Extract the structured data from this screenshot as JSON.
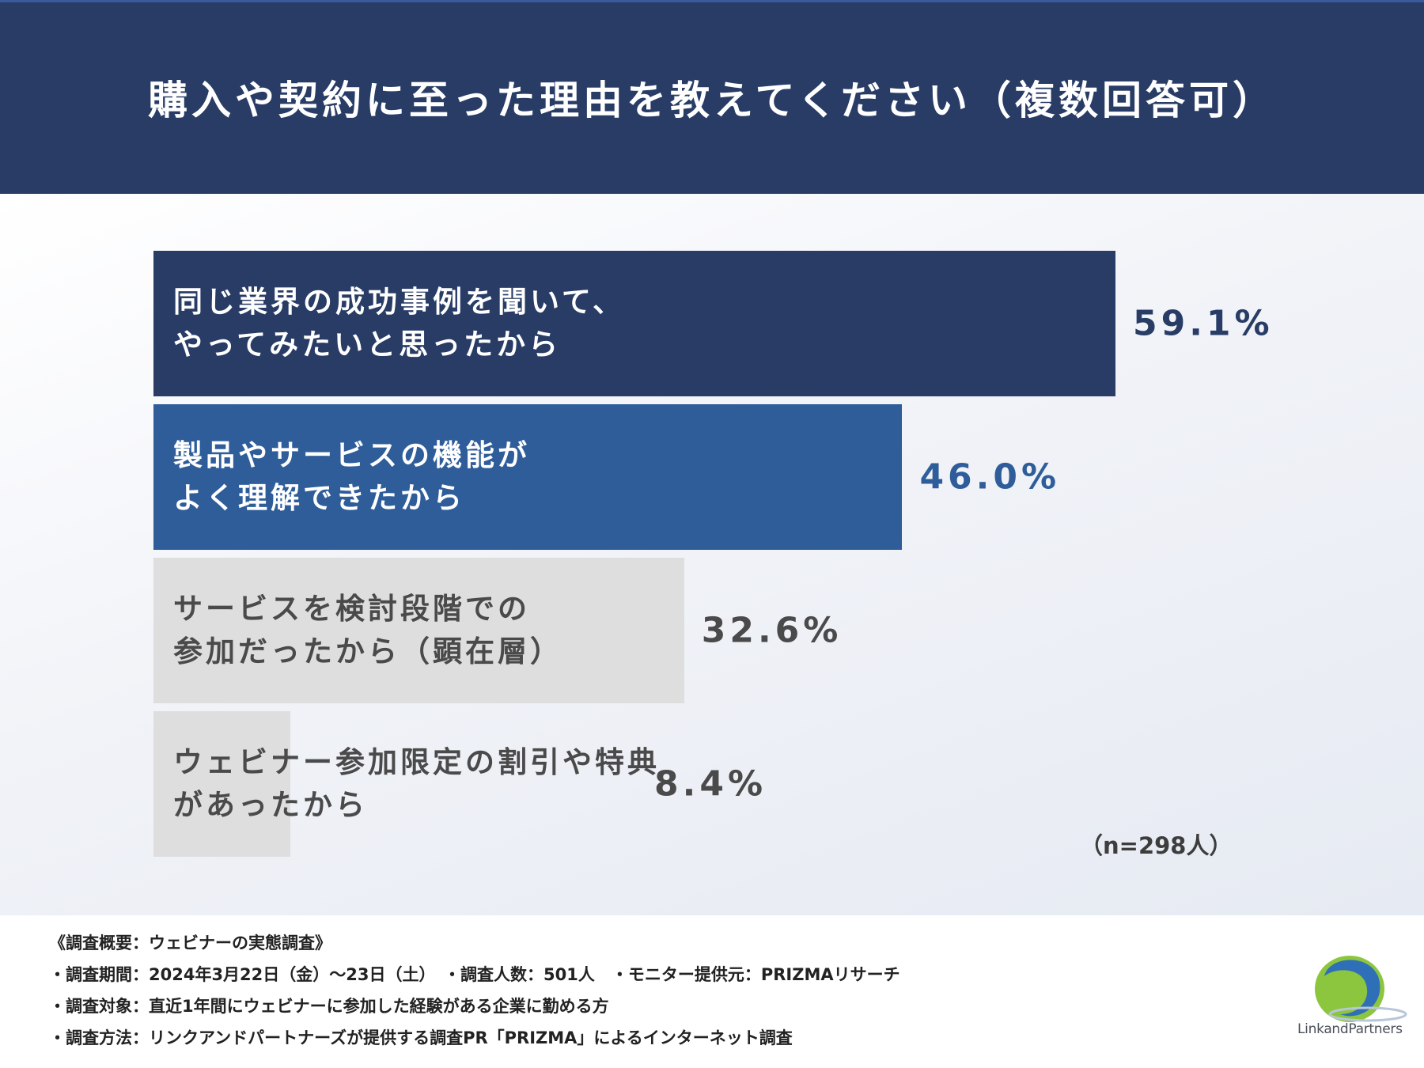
{
  "header": {
    "title": "購入や契約に至った理由を教えてください（複数回答可）"
  },
  "chart_data": {
    "type": "bar",
    "orientation": "horizontal",
    "categories": [
      [
        "同じ業界の成功事例を聞いて、",
        "やってみたいと思ったから"
      ],
      [
        "製品やサービスの機能が",
        "よく理解できたから"
      ],
      [
        "サービスを検討段階での",
        "参加だったから（顕在層）"
      ],
      [
        "ウェビナー参加限定の割引や特典",
        "があったから"
      ]
    ],
    "values": [
      59.1,
      46.0,
      32.6,
      8.4
    ],
    "value_labels": [
      "59.1%",
      "46.0%",
      "32.6%",
      "8.4%"
    ],
    "bar_colors": [
      "#283c66",
      "#2e5d9a",
      "#dedede",
      "#dedede"
    ],
    "label_colors": [
      "#ffffff",
      "#ffffff",
      "#4a4a4a",
      "#4a4a4a"
    ],
    "value_colors": [
      "#283c66",
      "#2e5d9a",
      "#4a4a4a",
      "#4a4a4a"
    ],
    "xlim": [
      0,
      100
    ],
    "note": "（n=298人）"
  },
  "footer": {
    "lines": [
      "《調査概要：ウェビナーの実態調査》",
      "・調査期間：2024年3月22日（金）〜23日（土）　・調査人数：501人　・モニター提供元：PRIZMAリサーチ",
      "・調査対象：直近1年間にウェビナーに参加した経験がある企業に勤める方",
      "・調査方法：リンクアンドパートナーズが提供する調査PR「PRIZMA」によるインターネット調査"
    ]
  },
  "logo": {
    "text": "LinkandPartners",
    "colors": {
      "green": "#8cc63f",
      "blue": "#2f6fb7"
    }
  }
}
